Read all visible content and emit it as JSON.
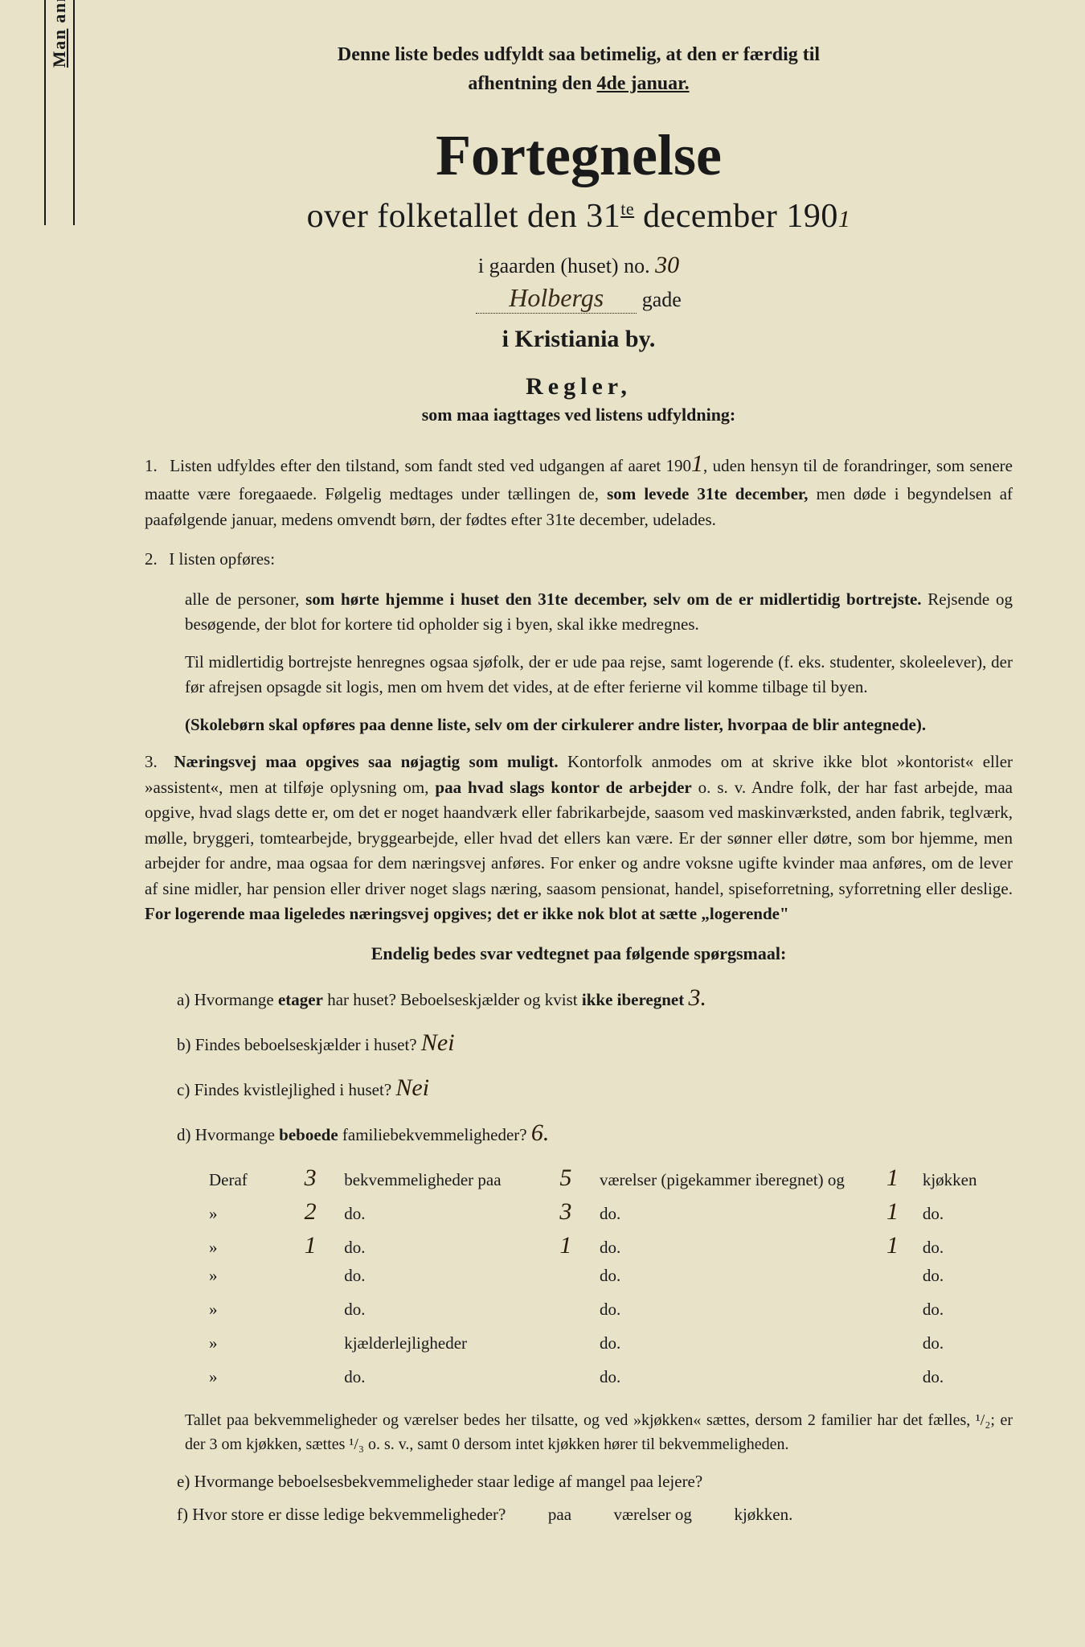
{
  "vertical_note": {
    "prefix": "Man anmodes om at gjennemlæse og nøje at befølge de paa fortegnelsen trykte overskrifter og anvisninger.",
    "underline_word": "Man"
  },
  "top_note": {
    "line1": "Denne liste bedes udfyldt saa betimelig, at den er færdig til",
    "line2_prefix": "afhentning den ",
    "line2_underline": "4de januar."
  },
  "title": "Fortegnelse",
  "subtitle": {
    "prefix": "over folketallet den 31",
    "super": "te",
    "suffix": " december 190",
    "handwritten_year": "1"
  },
  "address": {
    "line1_prefix": "i gaarden (huset) no. ",
    "house_no": "30",
    "street": "Holbergs",
    "street_suffix": "gade"
  },
  "city": "i Kristiania by.",
  "regler": {
    "title": "Regler,",
    "subtitle": "som maa iagttages ved listens udfyldning:"
  },
  "rules": {
    "r1": {
      "num": "1.",
      "text_a": "Listen udfyldes efter den tilstand, som fandt sted ved udgangen af aaret 190",
      "hw_year": "1",
      "text_b": ", uden hensyn til de forandringer, som senere maatte være foregaaede. Følgelig medtages under tællingen de, ",
      "bold1": "som levede 31te december,",
      "text_c": " men døde i begyndelsen af paafølgende januar, medens omvendt børn, der fødtes efter 31te december, udelades."
    },
    "r2": {
      "num": "2.",
      "text_a": "I listen opføres:",
      "indent_a": "alle de personer, ",
      "bold1": "som hørte hjemme i huset den 31te december, selv om de er midlertidig bortrejste.",
      "text_b": " Rejsende og besøgende, der blot for kortere tid opholder sig i byen, skal ikke medregnes.",
      "indent_b": "Til midlertidig bortrejste henregnes ogsaa sjøfolk, der er ude paa rejse, samt logerende (f. eks. studenter, skoleelever), der før afrejsen opsagde sit logis, men om hvem det vides, at de efter ferierne vil komme tilbage til byen.",
      "bold2": "(Skolebørn skal opføres paa denne liste, selv om der cirkulerer andre lister, hvorpaa de blir antegnede)."
    },
    "r3": {
      "num": "3.",
      "bold1": "Næringsvej maa opgives saa nøjagtig som muligt.",
      "text_a": " Kontorfolk anmodes om at skrive ikke blot »kontorist« eller »assistent«, men at tilføje oplysning om, ",
      "bold2": "paa hvad slags kontor de arbejder",
      "text_b": " o. s. v. Andre folk, der har fast arbejde, maa opgive, hvad slags dette er, om det er noget haandværk eller fabrikarbejde, saasom ved maskinværksted, anden fabrik, teglværk, mølle, bryggeri, tomtearbejde, bryggearbejde, eller hvad det ellers kan være. Er der sønner eller døtre, som bor hjemme, men arbejder for andre, maa ogsaa for dem næringsvej anføres. For enker og andre voksne ugifte kvinder maa anføres, om de lever af sine midler, har pension eller driver noget slags næring, saasom pensionat, handel, spiseforretning, syforretning eller deslige. ",
      "bold3": "For logerende maa ligeledes næringsvej opgives; det er ikke nok blot at sætte „logerende\""
    }
  },
  "questions_header": "Endelig bedes svar vedtegnet paa følgende spørgsmaal:",
  "questions": {
    "a": {
      "label": "a)",
      "text_a": "Hvormange ",
      "bold1": "etager",
      "text_b": " har huset? Beboelseskjælder og kvist ",
      "bold2": "ikke iberegnet",
      "answer": "3."
    },
    "b": {
      "label": "b)",
      "text": "Findes beboelseskjælder i huset?",
      "answer": "Nei"
    },
    "c": {
      "label": "c)",
      "text": "Findes kvistlejlighed i huset?",
      "answer": "Nei"
    },
    "d": {
      "label": "d)",
      "text_a": "Hvormange ",
      "bold1": "beboede",
      "text_b": " familiebekvemmeligheder?",
      "answer": "6."
    }
  },
  "table": {
    "header": {
      "prefix": "Deraf",
      "val1": "3",
      "mid1": "bekvemmeligheder paa",
      "val2": "5",
      "mid2": "værelser (pigekammer iberegnet) og",
      "val3": "1",
      "suffix": "kjøkken"
    },
    "rows": [
      {
        "v1": "2",
        "c1": "do.",
        "v2": "3",
        "c2": "do.",
        "v3": "1",
        "c3": "do."
      },
      {
        "v1": "1",
        "c1": "do.",
        "v2": "1",
        "c2": "do.",
        "v3": "1",
        "c3": "do."
      },
      {
        "v1": "",
        "c1": "do.",
        "v2": "",
        "c2": "do.",
        "v3": "",
        "c3": "do."
      },
      {
        "v1": "",
        "c1": "do.",
        "v2": "",
        "c2": "do.",
        "v3": "",
        "c3": "do."
      },
      {
        "v1": "",
        "c1": "kjælderlejligheder",
        "v2": "",
        "c2": "do.",
        "v3": "",
        "c3": "do."
      },
      {
        "v1": "",
        "c1": "do.",
        "v2": "",
        "c2": "do.",
        "v3": "",
        "c3": "do."
      }
    ]
  },
  "footnote": "Tallet paa bekvemmeligheder og værelser bedes her tilsatte, og ved »kjøkken« sættes, dersom 2 familier har det fælles, ¹/₂; er der 3 om kjøkken, sættes ¹/₃ o. s. v., samt 0 dersom intet kjøkken hører til bekvemmeligheden.",
  "question_e": {
    "label": "e)",
    "text": "Hvormange beboelsesbekvemmeligheder staar ledige af mangel paa lejere?"
  },
  "question_f": {
    "label": "f)",
    "text": "Hvor store er disse ledige bekvemmeligheder?",
    "mid1": "paa",
    "mid2": "værelser og",
    "suffix": "kjøkken."
  },
  "colors": {
    "paper": "#e8e2c8",
    "ink": "#1a1a1a",
    "handwriting": "#2a1a0a"
  }
}
